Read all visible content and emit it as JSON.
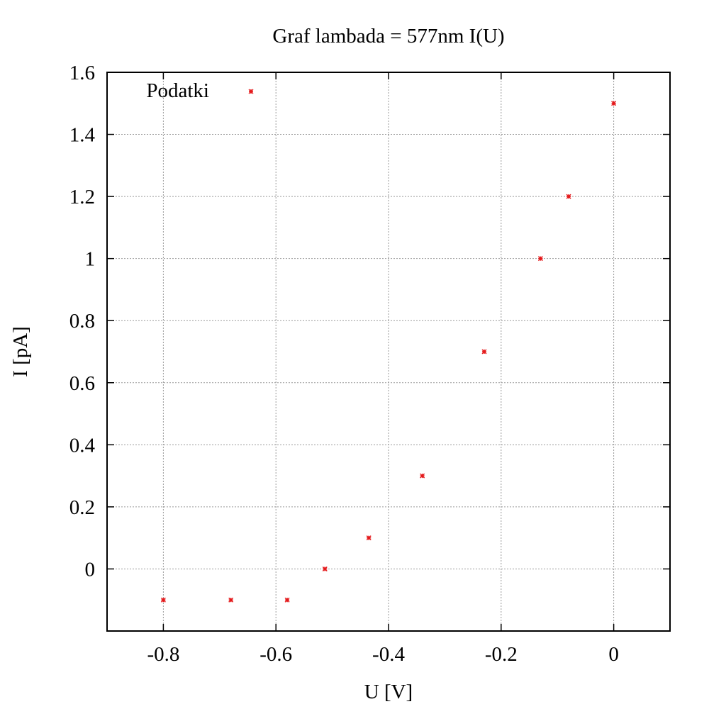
{
  "chart_data": {
    "type": "scatter",
    "title": "Graf lambada = 577nm I(U)",
    "xlabel": "U [V]",
    "ylabel": "I [pA]",
    "xlim": [
      -0.9,
      0.1
    ],
    "ylim": [
      -0.2,
      1.6
    ],
    "grid": true,
    "legend_position": "top-left",
    "x_ticks": [
      -0.8,
      -0.6,
      -0.4,
      -0.2,
      0
    ],
    "x_tick_labels": [
      "-0.8",
      "-0.6",
      "-0.4",
      "-0.2",
      "0"
    ],
    "y_ticks": [
      0,
      0.2,
      0.4,
      0.6,
      0.8,
      1,
      1.2,
      1.4,
      1.6
    ],
    "y_tick_labels": [
      "0",
      "0.2",
      "0.4",
      "0.6",
      "0.8",
      "1",
      "1.2",
      "1.4",
      "1.6"
    ],
    "series": [
      {
        "name": "Podatki",
        "color": "#e41a1c",
        "x": [
          -0.8,
          -0.68,
          -0.58,
          -0.513,
          -0.435,
          -0.34,
          -0.23,
          -0.13,
          -0.08,
          0.0
        ],
        "y": [
          -0.1,
          -0.1,
          -0.1,
          0.0,
          0.1,
          0.3,
          0.7,
          1.0,
          1.2,
          1.5
        ]
      }
    ]
  }
}
